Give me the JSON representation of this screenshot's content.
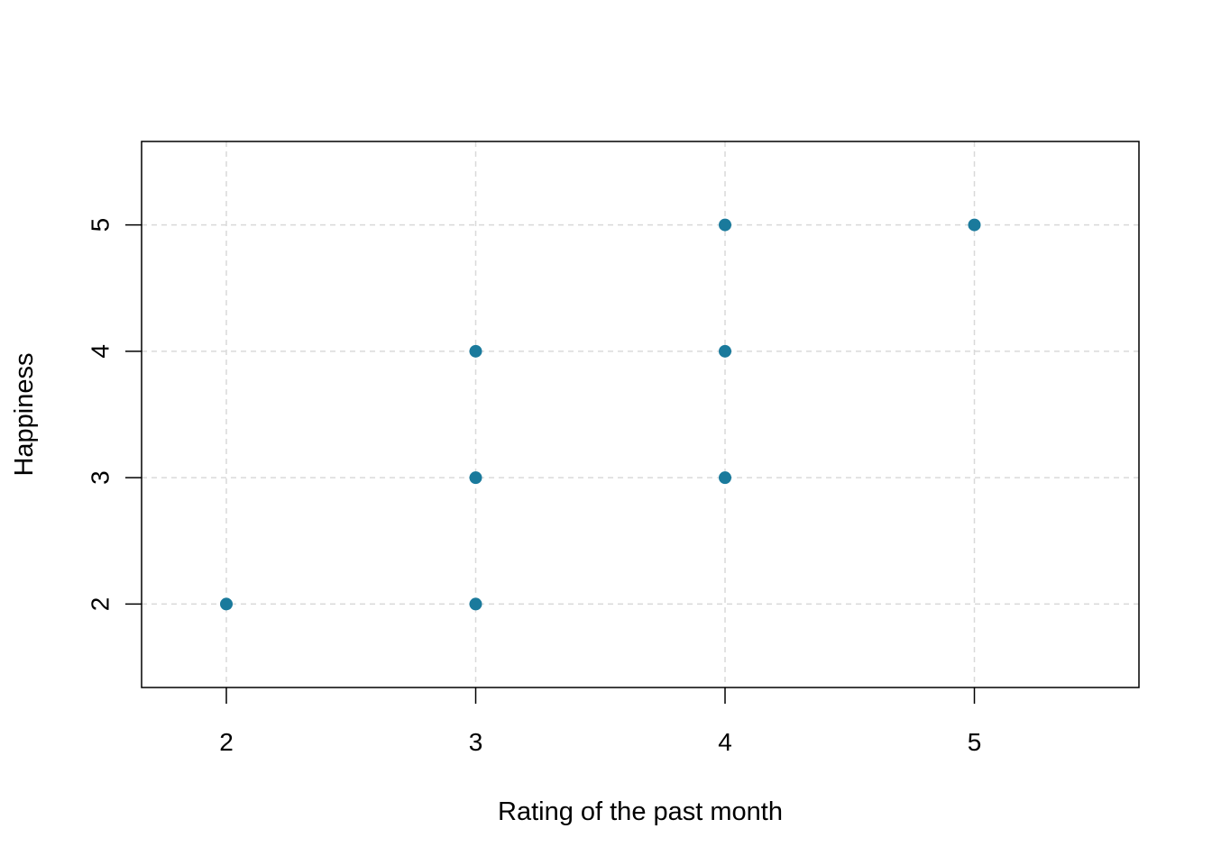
{
  "chart_data": {
    "type": "scatter",
    "title": "",
    "xlabel": "Rating of the past month",
    "ylabel": "Happiness",
    "xlim": [
      1.66,
      5.66
    ],
    "ylim": [
      1.34,
      5.66
    ],
    "xticks": [
      "2",
      "3",
      "4",
      "5"
    ],
    "yticks": [
      "2",
      "3",
      "4",
      "5"
    ],
    "grid": true,
    "points": [
      {
        "x": 2,
        "y": 2
      },
      {
        "x": 3,
        "y": 2
      },
      {
        "x": 3,
        "y": 3
      },
      {
        "x": 3,
        "y": 4
      },
      {
        "x": 4,
        "y": 3
      },
      {
        "x": 4,
        "y": 4
      },
      {
        "x": 4,
        "y": 5
      },
      {
        "x": 5,
        "y": 5
      }
    ],
    "colors": {
      "point": "#1a7a9c",
      "grid": "#d9d9d9",
      "frame": "#000000"
    }
  }
}
